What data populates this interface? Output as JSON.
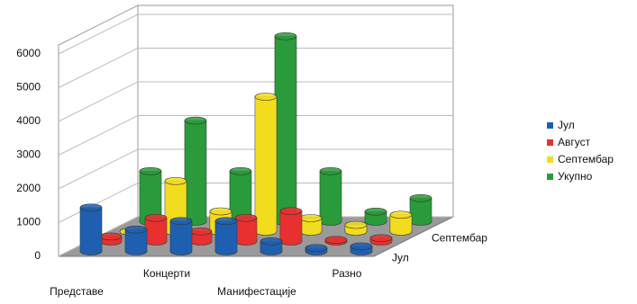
{
  "chart_data": {
    "type": "bar3d",
    "categories": [
      "Представе",
      null,
      "Концерти",
      null,
      "Манифестације",
      null,
      "Разно"
    ],
    "series": [
      {
        "name": "Јул",
        "color": "#1f5fb0",
        "values": [
          1300,
          650,
          900,
          900,
          300,
          100,
          150
        ]
      },
      {
        "name": "Август",
        "color": "#e83030",
        "values": [
          150,
          700,
          300,
          700,
          900,
          50,
          100
        ]
      },
      {
        "name": "Септембар",
        "color": "#f2dc1e",
        "values": [
          0,
          1500,
          600,
          4000,
          400,
          200,
          500
        ]
      },
      {
        "name": "Укупно",
        "color": "#2a9a3a",
        "values": [
          1500,
          3000,
          1500,
          5500,
          1500,
          300,
          700
        ]
      }
    ],
    "ylim": [
      0,
      6000
    ],
    "yticks": [
      0,
      1000,
      2000,
      3000,
      4000,
      5000,
      6000
    ],
    "grid": true
  }
}
